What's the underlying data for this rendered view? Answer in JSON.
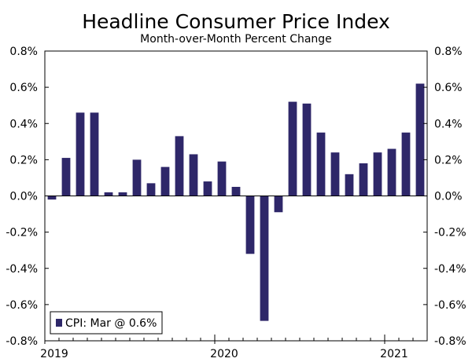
{
  "chart_data": {
    "type": "bar",
    "title": "Headline Consumer Price Index",
    "subtitle": "Month-over-Month Percent Change",
    "xlabel": "",
    "ylabel": "",
    "ylim": [
      -0.8,
      0.8
    ],
    "ytick_values": [
      0.8,
      0.6,
      0.4,
      0.2,
      0.0,
      -0.2,
      -0.4,
      -0.6,
      -0.8
    ],
    "yticks_left": [
      "0.8%",
      "0.6%",
      "0.4%",
      "0.2%",
      "0.0%",
      "-0.2%",
      "-0.4%",
      "-0.6%",
      "-0.8%"
    ],
    "yticks_right": [
      "0.8%",
      "0.6%",
      "0.4%",
      "0.2%",
      "0.0%",
      "-0.2%",
      "-0.4%",
      "-0.6%",
      "-0.8%"
    ],
    "year_labels": [
      {
        "label": "2019",
        "index": 0
      },
      {
        "label": "2020",
        "index": 12
      },
      {
        "label": "2021",
        "index": 24
      }
    ],
    "categories": [
      "Jan 2019",
      "Feb 2019",
      "Mar 2019",
      "Apr 2019",
      "May 2019",
      "Jun 2019",
      "Jul 2019",
      "Aug 2019",
      "Sep 2019",
      "Oct 2019",
      "Nov 2019",
      "Dec 2019",
      "Jan 2020",
      "Feb 2020",
      "Mar 2020",
      "Apr 2020",
      "May 2020",
      "Jun 2020",
      "Jul 2020",
      "Aug 2020",
      "Sep 2020",
      "Oct 2020",
      "Nov 2020",
      "Dec 2020",
      "Jan 2021",
      "Feb 2021",
      "Mar 2021"
    ],
    "series": [
      {
        "name": "CPI: Mar @ 0.6%",
        "color": "#2e2769",
        "values": [
          -0.02,
          0.21,
          0.46,
          0.46,
          0.02,
          0.02,
          0.2,
          0.07,
          0.16,
          0.33,
          0.23,
          0.08,
          0.19,
          0.05,
          -0.32,
          -0.69,
          -0.09,
          0.52,
          0.51,
          0.35,
          0.24,
          0.12,
          0.18,
          0.24,
          0.26,
          0.35,
          0.62
        ]
      }
    ],
    "legend": {
      "label": "CPI: Mar @ 0.6%",
      "position": "bottom-left"
    }
  }
}
